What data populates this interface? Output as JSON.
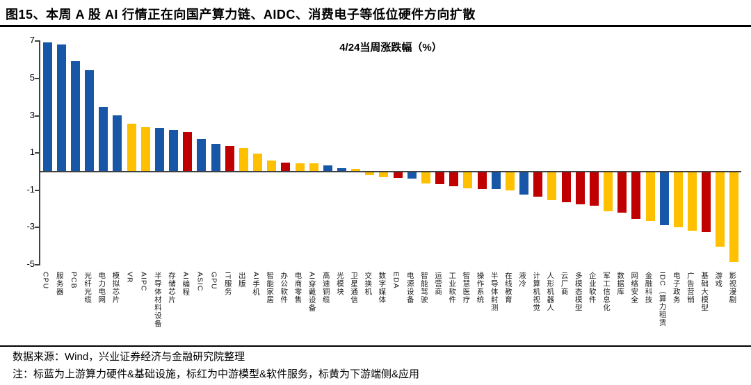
{
  "header": {
    "title": "图15、本周 A 股 AI 行情正在向国产算力链、AIDC、消费电子等低位硬件方向扩散"
  },
  "chart_data": {
    "type": "bar",
    "title": "4/24当周涨跌幅（%）",
    "xlabel": "",
    "ylabel": "",
    "ylim": [
      -5,
      7
    ],
    "yticks": [
      7,
      5,
      3,
      1,
      -1,
      -3,
      -5
    ],
    "grid": false,
    "legend_position": "none",
    "categories": [
      "CPU",
      "服务器",
      "PCB",
      "光纤光缆",
      "电力电网",
      "模拟芯片",
      "VR",
      "AIPC",
      "半导体材料设备",
      "存储芯片",
      "AI编程",
      "ASIC",
      "GPU",
      "IT服务",
      "出版",
      "AI手机",
      "智能家居",
      "办公软件",
      "电商零售",
      "AI穿戴设备",
      "高速铜缆",
      "光模块",
      "卫星通信",
      "交换机",
      "数字媒体",
      "EDA",
      "电源设备",
      "智能驾驶",
      "运营商",
      "工业软件",
      "智慧医疗",
      "操作系统",
      "半导体封测",
      "在线教育",
      "液冷",
      "计算机视觉",
      "人形机器人",
      "云厂商",
      "多模态模型",
      "企业软件",
      "军工信息化",
      "数据库",
      "网络安全",
      "金融科技",
      "IDC（算力租赁",
      "电子政务",
      "广告营销",
      "基础大模型",
      "游戏",
      "影视漫剧"
    ],
    "values": [
      6.9,
      6.8,
      5.9,
      5.4,
      3.45,
      3.0,
      2.55,
      2.35,
      2.3,
      2.2,
      2.1,
      1.7,
      1.45,
      1.35,
      1.25,
      0.95,
      0.55,
      0.45,
      0.4,
      0.4,
      0.3,
      0.15,
      0.1,
      -0.15,
      -0.25,
      -0.3,
      -0.35,
      -0.6,
      -0.65,
      -0.75,
      -0.85,
      -0.9,
      -0.9,
      -0.95,
      -1.2,
      -1.3,
      -1.5,
      -1.6,
      -1.7,
      -1.8,
      -2.1,
      -2.15,
      -2.5,
      -2.6,
      -2.85,
      -2.95,
      -3.15,
      -3.2,
      -4.0,
      -4.8
    ],
    "groups": [
      "upstream",
      "upstream",
      "upstream",
      "upstream",
      "upstream",
      "upstream",
      "downstream",
      "downstream",
      "upstream",
      "upstream",
      "midstream",
      "upstream",
      "upstream",
      "midstream",
      "downstream",
      "downstream",
      "downstream",
      "midstream",
      "downstream",
      "downstream",
      "upstream",
      "upstream",
      "downstream",
      "downstream",
      "downstream",
      "midstream",
      "upstream",
      "downstream",
      "midstream",
      "midstream",
      "downstream",
      "midstream",
      "upstream",
      "downstream",
      "upstream",
      "midstream",
      "downstream",
      "midstream",
      "midstream",
      "midstream",
      "downstream",
      "midstream",
      "midstream",
      "downstream",
      "upstream",
      "downstream",
      "downstream",
      "midstream",
      "downstream",
      "downstream"
    ],
    "group_colors": {
      "upstream": "#1857A8",
      "midstream": "#C00000",
      "downstream": "#FFC000"
    },
    "group_labels": {
      "upstream": "上游算力硬件&基础设施",
      "midstream": "中游模型&软件服务",
      "downstream": "下游端侧&应用"
    }
  },
  "footer": {
    "source": "数据来源：Wind，兴业证券经济与金融研究院整理",
    "note": "注：标蓝为上游算力硬件&基础设施，标红为中游模型&软件服务，标黄为下游端侧&应用"
  }
}
